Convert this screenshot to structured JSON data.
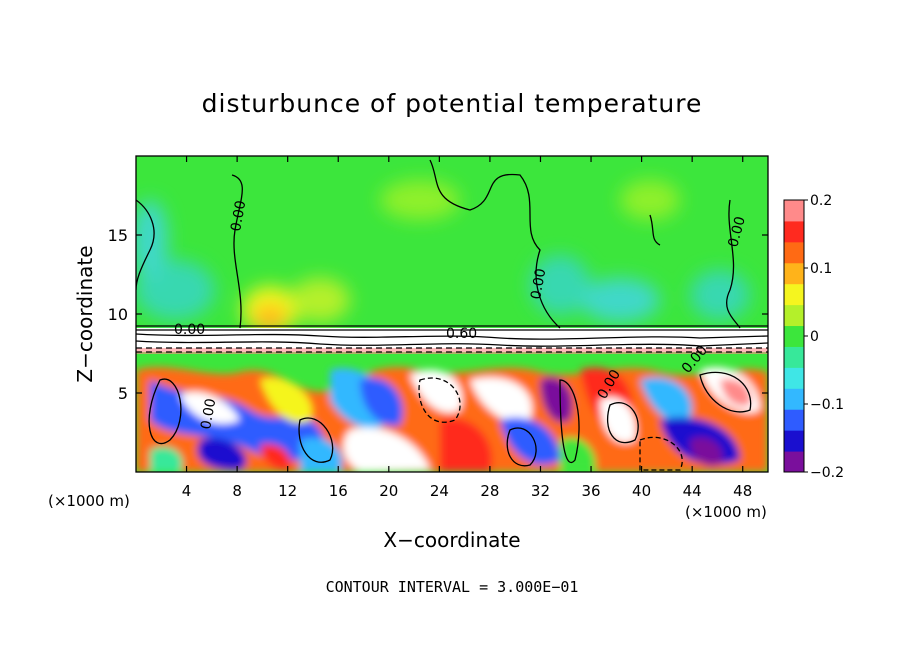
{
  "chart_data": {
    "type": "heatmap",
    "title": "disturbunce of potential temperature",
    "xlabel": "X−coordinate",
    "ylabel": "Z−coordinate",
    "x_unit": "(×1000 m)",
    "x_unit_right": "(×1000 m)",
    "xlim": [
      0,
      50
    ],
    "ylim": [
      0,
      20
    ],
    "x_ticks": [
      "4",
      "8",
      "12",
      "16",
      "20",
      "24",
      "28",
      "32",
      "36",
      "40",
      "44",
      "48"
    ],
    "y_ticks": [
      "5",
      "10",
      "15"
    ],
    "footer": "CONTOUR INTERVAL = 3.000E−01",
    "colorbar": {
      "min": -0.2,
      "max": 0.2,
      "tick_labels": [
        "0.2",
        "0.1",
        "0",
        "−0.1",
        "−0.2"
      ],
      "colors": [
        "#7a0f9c",
        "#1a0fcf",
        "#2f5cff",
        "#33b8ff",
        "#3fe6e6",
        "#37e89a",
        "#3ce63c",
        "#b4f02a",
        "#f5f51f",
        "#ffb31a",
        "#ff6a14",
        "#ff2a1f",
        "#ff8a8a"
      ]
    },
    "contour_labels": [
      "0.00",
      "0.00",
      "0.00",
      "0.00",
      "0.00",
      "0.60",
      "0.00",
      "0.00"
    ],
    "grid": false,
    "legend": "colorbar-right"
  }
}
